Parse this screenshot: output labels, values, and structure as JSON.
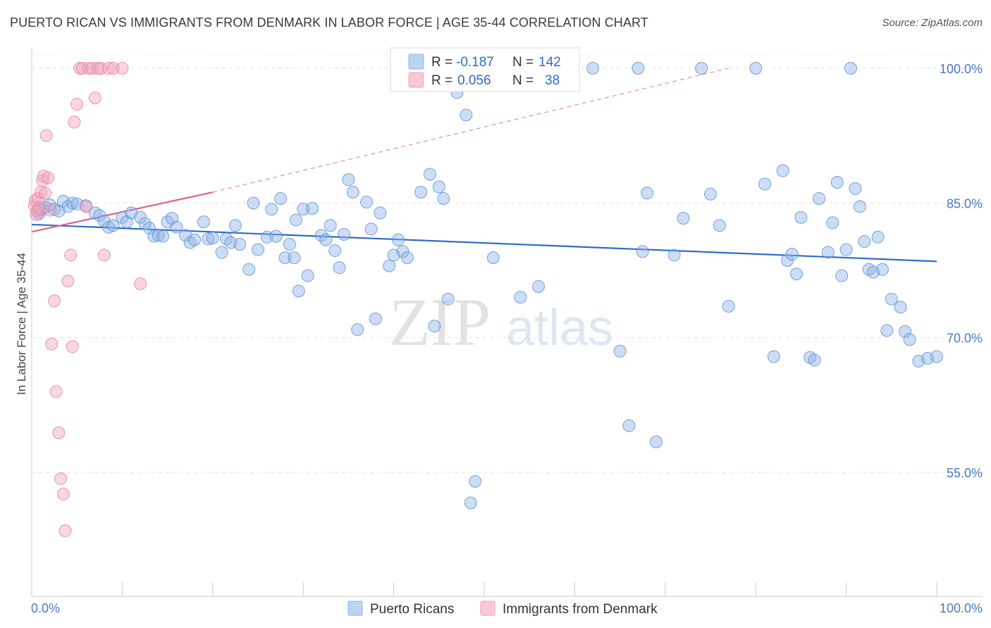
{
  "header": {
    "title": "PUERTO RICAN VS IMMIGRANTS FROM DENMARK IN LABOR FORCE | AGE 35-44 CORRELATION CHART",
    "source": "Source: ZipAtlas.com"
  },
  "watermark": {
    "zip": "ZIP",
    "atlas": "atlas"
  },
  "chart_data": {
    "type": "scatter",
    "title": "PUERTO RICAN VS IMMIGRANTS FROM DENMARK IN LABOR FORCE | AGE 35-44 CORRELATION CHART",
    "xlabel": "",
    "ylabel": "In Labor Force | Age 35-44",
    "xlim": [
      0,
      100
    ],
    "ylim": [
      40,
      103
    ],
    "x_tick_labels": [
      "0.0%",
      "100.0%"
    ],
    "y_ticks": [
      100,
      85,
      70,
      55
    ],
    "y_tick_labels": [
      "100.0%",
      "85.0%",
      "70.0%",
      "55.0%"
    ],
    "grid": true,
    "legend_top": {
      "rows": [
        {
          "r_label": "R = ",
          "r_value": "-0.187",
          "n_label": "N = ",
          "n_value": "142",
          "color": "#8fb4e8"
        },
        {
          "r_label": "R = ",
          "r_value": "0.056",
          "n_label": "N = ",
          "n_value": "38",
          "color": "#f2a5bd"
        }
      ]
    },
    "legend_bottom": [
      "Puerto Ricans",
      "Immigrants from Denmark"
    ],
    "series": [
      {
        "name": "Puerto Ricans",
        "color": "#8fb4e8",
        "stroke": "#5b8fd6",
        "trend": {
          "x": [
            0,
            100
          ],
          "y": [
            82.6,
            78.5
          ],
          "color": "#2f6bc8"
        },
        "points": [
          [
            0.8,
            83.8
          ],
          [
            1,
            84.2
          ],
          [
            1.5,
            84.5
          ],
          [
            2,
            84.8
          ],
          [
            2.5,
            84.3
          ],
          [
            3,
            84.1
          ],
          [
            3.5,
            85.2
          ],
          [
            4,
            84.6
          ],
          [
            4.5,
            85.0
          ],
          [
            5,
            84.9
          ],
          [
            6,
            84.7
          ],
          [
            7,
            83.9
          ],
          [
            7.5,
            83.6
          ],
          [
            8,
            83.0
          ],
          [
            8.5,
            82.3
          ],
          [
            9,
            82.5
          ],
          [
            10,
            83.4
          ],
          [
            10.5,
            82.9
          ],
          [
            11,
            83.9
          ],
          [
            12,
            83.4
          ],
          [
            12.5,
            82.7
          ],
          [
            13,
            82.2
          ],
          [
            13.5,
            81.3
          ],
          [
            14,
            81.4
          ],
          [
            14.5,
            81.3
          ],
          [
            15,
            82.9
          ],
          [
            15.5,
            83.3
          ],
          [
            16,
            82.3
          ],
          [
            17,
            81.4
          ],
          [
            17.5,
            80.6
          ],
          [
            18,
            80.9
          ],
          [
            19,
            82.9
          ],
          [
            19.5,
            81.0
          ],
          [
            20,
            81.1
          ],
          [
            21,
            79.5
          ],
          [
            21.5,
            81.0
          ],
          [
            22,
            80.6
          ],
          [
            22.5,
            82.5
          ],
          [
            23,
            80.4
          ],
          [
            24,
            77.6
          ],
          [
            24.5,
            85.0
          ],
          [
            25,
            79.8
          ],
          [
            26,
            81.2
          ],
          [
            26.5,
            84.3
          ],
          [
            27,
            81.3
          ],
          [
            27.5,
            85.5
          ],
          [
            28,
            78.9
          ],
          [
            28.5,
            80.4
          ],
          [
            29,
            78.9
          ],
          [
            29.5,
            75.2
          ],
          [
            30,
            84.3
          ],
          [
            30.5,
            76.9
          ],
          [
            31,
            84.4
          ],
          [
            32,
            81.4
          ],
          [
            32.5,
            80.9
          ],
          [
            33,
            82.5
          ],
          [
            33.5,
            79.7
          ],
          [
            34,
            77.8
          ],
          [
            34.5,
            81.5
          ],
          [
            35,
            87.6
          ],
          [
            35.5,
            86.2
          ],
          [
            36,
            70.9
          ],
          [
            37,
            85.1
          ],
          [
            37.5,
            82.1
          ],
          [
            38,
            72.1
          ],
          [
            38.5,
            83.9
          ],
          [
            39.5,
            78.0
          ],
          [
            40,
            79.2
          ],
          [
            40.5,
            80.9
          ],
          [
            41,
            79.6
          ],
          [
            41.5,
            78.9
          ],
          [
            43,
            86.2
          ],
          [
            44,
            88.2
          ],
          [
            44.5,
            71.3
          ],
          [
            45,
            86.8
          ],
          [
            46,
            74.3
          ],
          [
            47,
            97.3
          ],
          [
            48,
            94.8
          ],
          [
            48.5,
            51.6
          ],
          [
            49,
            54.0
          ],
          [
            51,
            78.9
          ],
          [
            54,
            74.5
          ],
          [
            56,
            75.7
          ],
          [
            62,
            100.0
          ],
          [
            65,
            68.5
          ],
          [
            66,
            60.2
          ],
          [
            67,
            100.0
          ],
          [
            67.5,
            79.6
          ],
          [
            68,
            86.1
          ],
          [
            69,
            58.4
          ],
          [
            71,
            79.2
          ],
          [
            72,
            83.3
          ],
          [
            74,
            100.0
          ],
          [
            75,
            86.0
          ],
          [
            76,
            82.5
          ],
          [
            77,
            73.5
          ],
          [
            80,
            100.0
          ],
          [
            81,
            87.1
          ],
          [
            82,
            67.9
          ],
          [
            83,
            88.6
          ],
          [
            83.5,
            78.6
          ],
          [
            84,
            79.3
          ],
          [
            84.5,
            77.1
          ],
          [
            85,
            83.4
          ],
          [
            86,
            67.8
          ],
          [
            86.5,
            67.5
          ],
          [
            87,
            85.5
          ],
          [
            88,
            79.5
          ],
          [
            88.5,
            82.8
          ],
          [
            89,
            87.3
          ],
          [
            89.5,
            76.9
          ],
          [
            90,
            79.8
          ],
          [
            90.5,
            100.0
          ],
          [
            91,
            86.6
          ],
          [
            91.5,
            84.6
          ],
          [
            92,
            80.7
          ],
          [
            92.5,
            77.6
          ],
          [
            93,
            77.3
          ],
          [
            93.5,
            81.2
          ],
          [
            94,
            77.6
          ],
          [
            94.5,
            70.8
          ],
          [
            95,
            74.3
          ],
          [
            96,
            73.4
          ],
          [
            96.5,
            70.7
          ],
          [
            97,
            69.8
          ],
          [
            98,
            67.4
          ],
          [
            99,
            67.7
          ],
          [
            100,
            67.9
          ],
          [
            45.5,
            85.5
          ],
          [
            29.2,
            83.1
          ]
        ]
      },
      {
        "name": "Immigrants from Denmark",
        "color": "#f2a5bd",
        "stroke": "#e07fa0",
        "trend": {
          "x": [
            0,
            20
          ],
          "y": [
            81.8,
            86.2
          ],
          "color": "#e0608a"
        },
        "trend_ext": {
          "x": [
            20,
            77
          ],
          "y": [
            86.2,
            100.0
          ],
          "color": "#e88aaa"
        },
        "points": [
          [
            0.3,
            84.7
          ],
          [
            0.4,
            85.3
          ],
          [
            0.5,
            83.7
          ],
          [
            0.6,
            84.1
          ],
          [
            0.7,
            85.5
          ],
          [
            0.8,
            84.4
          ],
          [
            1.0,
            86.2
          ],
          [
            1.2,
            87.5
          ],
          [
            1.3,
            88.0
          ],
          [
            1.5,
            86.1
          ],
          [
            1.6,
            92.5
          ],
          [
            1.8,
            87.8
          ],
          [
            2,
            84.2
          ],
          [
            2.2,
            69.3
          ],
          [
            2.5,
            74.1
          ],
          [
            2.7,
            64.0
          ],
          [
            3,
            59.4
          ],
          [
            3.2,
            54.3
          ],
          [
            3.5,
            52.6
          ],
          [
            3.7,
            48.5
          ],
          [
            4,
            76.3
          ],
          [
            4.3,
            79.2
          ],
          [
            4.5,
            69.0
          ],
          [
            4.7,
            94.0
          ],
          [
            5,
            96.0
          ],
          [
            5.3,
            100.0
          ],
          [
            5.6,
            100.0
          ],
          [
            6,
            84.6
          ],
          [
            6.3,
            100.0
          ],
          [
            6.7,
            100.0
          ],
          [
            7,
            96.7
          ],
          [
            7.3,
            100.0
          ],
          [
            7.6,
            100.0
          ],
          [
            8,
            79.2
          ],
          [
            8.5,
            100.0
          ],
          [
            9,
            100.0
          ],
          [
            10,
            100.0
          ],
          [
            12,
            76.0
          ]
        ]
      }
    ]
  }
}
